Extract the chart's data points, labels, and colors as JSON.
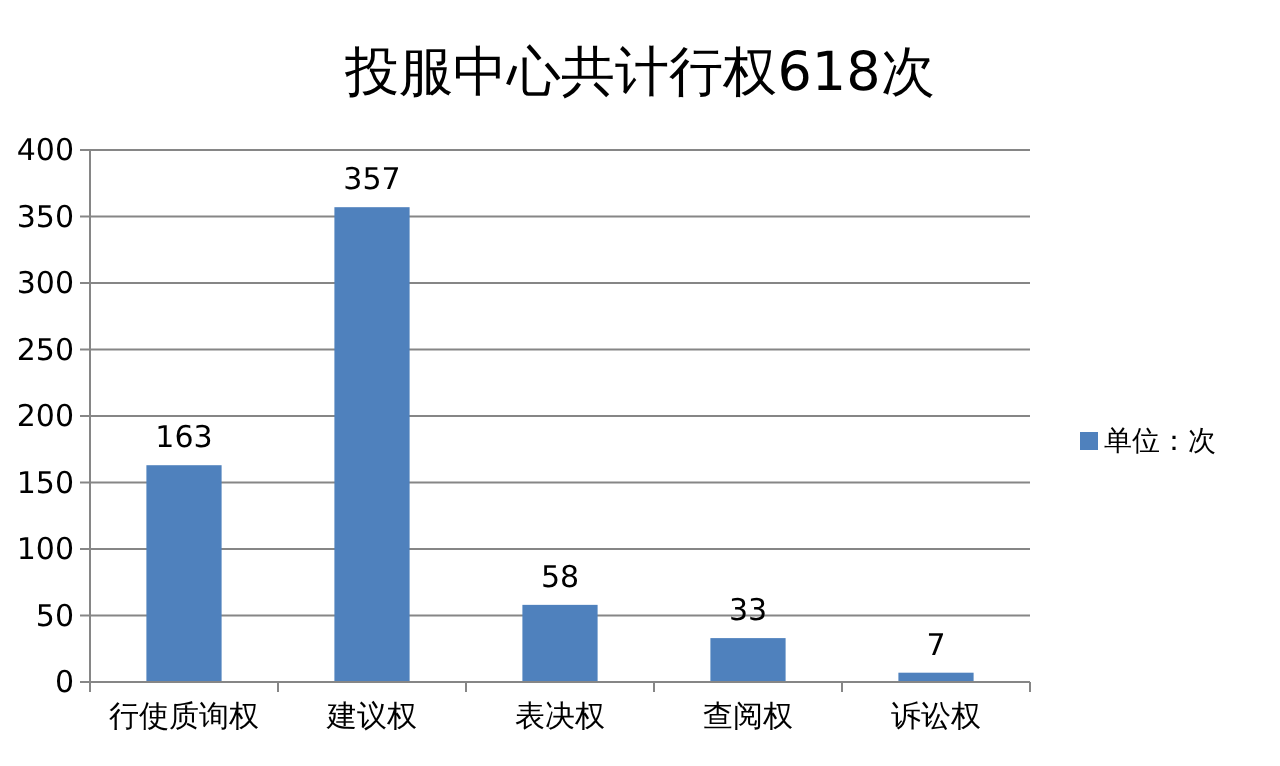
{
  "chart_data": {
    "type": "bar",
    "title": "投服中心共计行权618次",
    "categories": [
      "行使质询权",
      "建议权",
      "表决权",
      "查阅权",
      "诉讼权"
    ],
    "series": [
      {
        "name": "单位：次",
        "color": "#4f81bd",
        "values": [
          163,
          357,
          58,
          33,
          7
        ]
      }
    ],
    "ylim": [
      0,
      400
    ],
    "yticks": [
      0,
      50,
      100,
      150,
      200,
      250,
      300,
      350,
      400
    ],
    "grid": "y",
    "legend": "right",
    "data_labels": true
  }
}
